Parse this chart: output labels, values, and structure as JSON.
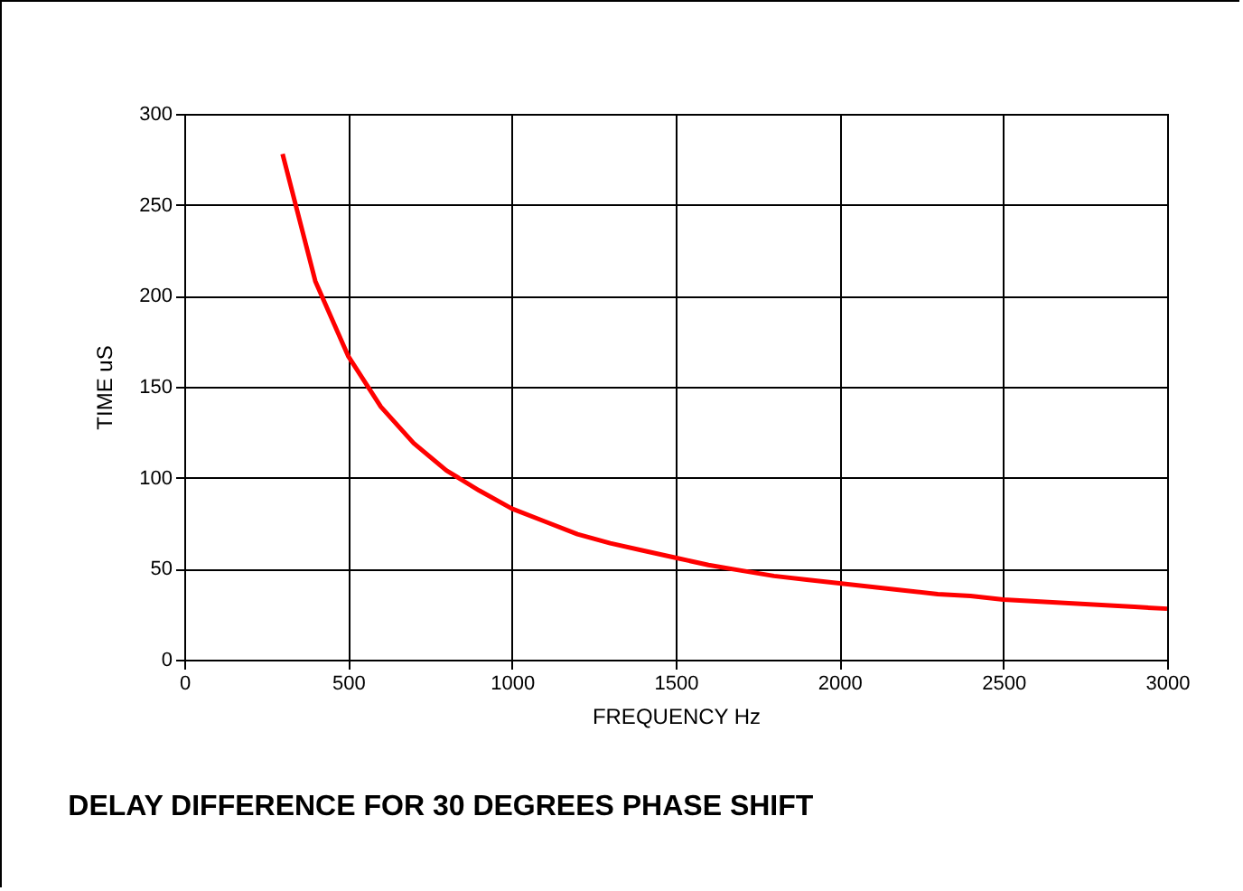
{
  "chart_data": {
    "type": "line",
    "title": "DELAY DIFFERENCE FOR 30 DEGREES PHASE SHIFT",
    "xlabel": "FREQUENCY  Hz",
    "ylabel": "TIME uS",
    "x": [
      300,
      400,
      500,
      600,
      700,
      800,
      900,
      1000,
      1100,
      1200,
      1300,
      1400,
      1500,
      1600,
      1700,
      1800,
      1900,
      2000,
      2100,
      2200,
      2300,
      2400,
      2500,
      2600,
      2700,
      2800,
      2900,
      3000
    ],
    "series": [
      {
        "color": "#ff0000",
        "values": [
          278,
          208,
          167,
          139,
          119,
          104,
          93,
          83,
          76,
          69,
          64,
          60,
          56,
          52,
          49,
          46,
          44,
          42,
          40,
          38,
          36,
          35,
          33,
          32,
          31,
          30,
          29,
          28
        ]
      }
    ],
    "xlim": [
      0,
      3000
    ],
    "xticks": [
      0,
      500,
      1000,
      1500,
      2000,
      2500,
      3000
    ],
    "ylim": [
      0,
      300
    ],
    "yticks": [
      0,
      50,
      100,
      150,
      200,
      250,
      300
    ],
    "grid": true,
    "marker": "none",
    "line_style": "solid"
  }
}
